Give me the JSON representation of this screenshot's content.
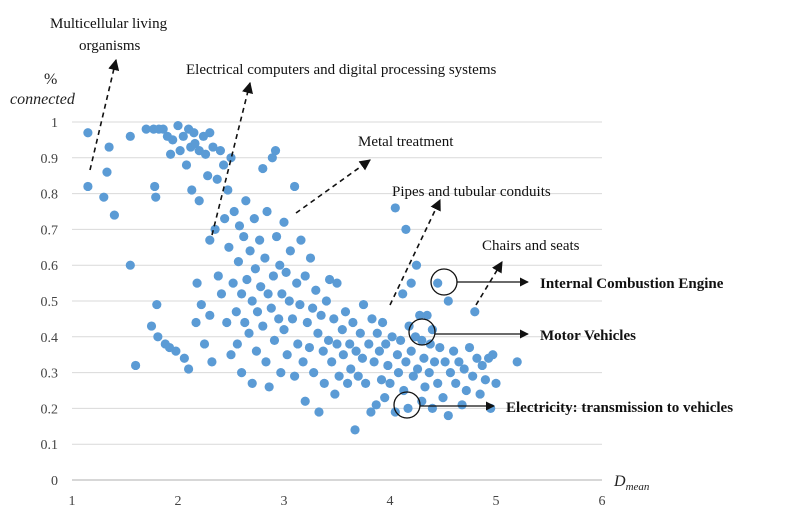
{
  "chart_data": {
    "type": "scatter",
    "title": "",
    "xlabel": "D",
    "xlabel_sub": "mean",
    "ylabel_line1": "%",
    "ylabel_line2": "connected",
    "xlim": [
      1,
      6
    ],
    "ylim": [
      0,
      1
    ],
    "x_ticks": [
      "1",
      "2",
      "3",
      "4",
      "5",
      "6"
    ],
    "y_ticks": [
      "0",
      "0.1",
      "0.2",
      "0.3",
      "0.4",
      "0.5",
      "0.6",
      "0.7",
      "0.8",
      "0.9",
      "1"
    ],
    "grid": "horizontal",
    "point_color": "#5b9bd5",
    "points": [
      [
        1.15,
        0.97
      ],
      [
        1.15,
        0.82
      ],
      [
        1.3,
        0.79
      ],
      [
        1.35,
        0.93
      ],
      [
        1.33,
        0.86
      ],
      [
        1.4,
        0.74
      ],
      [
        1.55,
        0.6
      ],
      [
        1.6,
        0.32
      ],
      [
        1.55,
        0.96
      ],
      [
        1.7,
        0.98
      ],
      [
        1.75,
        0.43
      ],
      [
        1.77,
        0.98
      ],
      [
        1.78,
        0.82
      ],
      [
        1.79,
        0.79
      ],
      [
        1.8,
        0.49
      ],
      [
        1.81,
        0.4
      ],
      [
        1.82,
        0.98
      ],
      [
        1.86,
        0.98
      ],
      [
        1.88,
        0.38
      ],
      [
        1.9,
        0.96
      ],
      [
        1.92,
        0.37
      ],
      [
        1.93,
        0.91
      ],
      [
        1.95,
        0.95
      ],
      [
        1.98,
        0.36
      ],
      [
        2.0,
        0.99
      ],
      [
        2.02,
        0.92
      ],
      [
        2.05,
        0.96
      ],
      [
        2.06,
        0.34
      ],
      [
        2.08,
        0.88
      ],
      [
        2.1,
        0.31
      ],
      [
        2.1,
        0.98
      ],
      [
        2.12,
        0.93
      ],
      [
        2.13,
        0.81
      ],
      [
        2.15,
        0.97
      ],
      [
        2.16,
        0.94
      ],
      [
        2.17,
        0.44
      ],
      [
        2.18,
        0.55
      ],
      [
        2.2,
        0.78
      ],
      [
        2.2,
        0.92
      ],
      [
        2.22,
        0.49
      ],
      [
        2.24,
        0.96
      ],
      [
        2.25,
        0.38
      ],
      [
        2.26,
        0.91
      ],
      [
        2.28,
        0.85
      ],
      [
        2.3,
        0.97
      ],
      [
        2.3,
        0.67
      ],
      [
        2.3,
        0.46
      ],
      [
        2.32,
        0.33
      ],
      [
        2.33,
        0.93
      ],
      [
        2.35,
        0.7
      ],
      [
        2.37,
        0.84
      ],
      [
        2.38,
        0.57
      ],
      [
        2.4,
        0.92
      ],
      [
        2.41,
        0.52
      ],
      [
        2.43,
        0.88
      ],
      [
        2.44,
        0.73
      ],
      [
        2.46,
        0.44
      ],
      [
        2.47,
        0.81
      ],
      [
        2.48,
        0.65
      ],
      [
        2.5,
        0.9
      ],
      [
        2.5,
        0.35
      ],
      [
        2.52,
        0.55
      ],
      [
        2.53,
        0.75
      ],
      [
        2.55,
        0.47
      ],
      [
        2.56,
        0.38
      ],
      [
        2.57,
        0.61
      ],
      [
        2.58,
        0.71
      ],
      [
        2.6,
        0.52
      ],
      [
        2.6,
        0.3
      ],
      [
        2.62,
        0.68
      ],
      [
        2.63,
        0.44
      ],
      [
        2.64,
        0.78
      ],
      [
        2.65,
        0.56
      ],
      [
        2.67,
        0.41
      ],
      [
        2.68,
        0.64
      ],
      [
        2.7,
        0.5
      ],
      [
        2.7,
        0.27
      ],
      [
        2.72,
        0.73
      ],
      [
        2.73,
        0.59
      ],
      [
        2.74,
        0.36
      ],
      [
        2.75,
        0.47
      ],
      [
        2.77,
        0.67
      ],
      [
        2.78,
        0.54
      ],
      [
        2.8,
        0.43
      ],
      [
        2.8,
        0.87
      ],
      [
        2.82,
        0.62
      ],
      [
        2.83,
        0.33
      ],
      [
        2.84,
        0.75
      ],
      [
        2.85,
        0.52
      ],
      [
        2.86,
        0.26
      ],
      [
        2.88,
        0.48
      ],
      [
        2.89,
        0.9
      ],
      [
        2.9,
        0.57
      ],
      [
        2.91,
        0.39
      ],
      [
        2.92,
        0.92
      ],
      [
        2.93,
        0.68
      ],
      [
        2.95,
        0.45
      ],
      [
        2.96,
        0.6
      ],
      [
        2.97,
        0.3
      ],
      [
        2.98,
        0.52
      ],
      [
        3.0,
        0.72
      ],
      [
        3.0,
        0.42
      ],
      [
        3.02,
        0.58
      ],
      [
        3.03,
        0.35
      ],
      [
        3.05,
        0.5
      ],
      [
        3.06,
        0.64
      ],
      [
        3.08,
        0.45
      ],
      [
        3.1,
        0.82
      ],
      [
        3.1,
        0.29
      ],
      [
        3.12,
        0.55
      ],
      [
        3.13,
        0.38
      ],
      [
        3.15,
        0.49
      ],
      [
        3.16,
        0.67
      ],
      [
        3.18,
        0.33
      ],
      [
        3.2,
        0.57
      ],
      [
        3.2,
        0.22
      ],
      [
        3.22,
        0.44
      ],
      [
        3.24,
        0.37
      ],
      [
        3.25,
        0.62
      ],
      [
        3.27,
        0.48
      ],
      [
        3.28,
        0.3
      ],
      [
        3.3,
        0.53
      ],
      [
        3.32,
        0.41
      ],
      [
        3.33,
        0.19
      ],
      [
        3.35,
        0.46
      ],
      [
        3.37,
        0.36
      ],
      [
        3.38,
        0.27
      ],
      [
        3.4,
        0.5
      ],
      [
        3.42,
        0.39
      ],
      [
        3.43,
        0.56
      ],
      [
        3.45,
        0.33
      ],
      [
        3.47,
        0.45
      ],
      [
        3.48,
        0.24
      ],
      [
        3.5,
        0.38
      ],
      [
        3.5,
        0.55
      ],
      [
        3.52,
        0.29
      ],
      [
        3.55,
        0.42
      ],
      [
        3.56,
        0.35
      ],
      [
        3.58,
        0.47
      ],
      [
        3.6,
        0.27
      ],
      [
        3.62,
        0.38
      ],
      [
        3.63,
        0.31
      ],
      [
        3.65,
        0.44
      ],
      [
        3.67,
        0.14
      ],
      [
        3.68,
        0.36
      ],
      [
        3.7,
        0.29
      ],
      [
        3.72,
        0.41
      ],
      [
        3.74,
        0.34
      ],
      [
        3.75,
        0.49
      ],
      [
        3.77,
        0.27
      ],
      [
        3.8,
        0.38
      ],
      [
        3.82,
        0.19
      ],
      [
        3.83,
        0.45
      ],
      [
        3.85,
        0.33
      ],
      [
        3.87,
        0.21
      ],
      [
        3.88,
        0.41
      ],
      [
        3.9,
        0.36
      ],
      [
        3.92,
        0.28
      ],
      [
        3.93,
        0.44
      ],
      [
        3.95,
        0.23
      ],
      [
        3.96,
        0.38
      ],
      [
        3.98,
        0.32
      ],
      [
        4.0,
        0.27
      ],
      [
        4.02,
        0.4
      ],
      [
        4.05,
        0.76
      ],
      [
        4.05,
        0.19
      ],
      [
        4.07,
        0.35
      ],
      [
        4.08,
        0.3
      ],
      [
        4.1,
        0.39
      ],
      [
        4.12,
        0.52
      ],
      [
        4.13,
        0.25
      ],
      [
        4.15,
        0.7
      ],
      [
        4.15,
        0.33
      ],
      [
        4.17,
        0.2
      ],
      [
        4.18,
        0.43
      ],
      [
        4.2,
        0.36
      ],
      [
        4.2,
        0.55
      ],
      [
        4.22,
        0.29
      ],
      [
        4.24,
        0.4
      ],
      [
        4.25,
        0.6
      ],
      [
        4.26,
        0.31
      ],
      [
        4.28,
        0.46
      ],
      [
        4.3,
        0.22
      ],
      [
        4.3,
        0.39
      ],
      [
        4.32,
        0.34
      ],
      [
        4.33,
        0.26
      ],
      [
        4.35,
        0.46
      ],
      [
        4.37,
        0.3
      ],
      [
        4.38,
        0.38
      ],
      [
        4.4,
        0.2
      ],
      [
        4.4,
        0.42
      ],
      [
        4.42,
        0.33
      ],
      [
        4.45,
        0.55
      ],
      [
        4.45,
        0.27
      ],
      [
        4.47,
        0.37
      ],
      [
        4.5,
        0.23
      ],
      [
        4.52,
        0.33
      ],
      [
        4.55,
        0.5
      ],
      [
        4.55,
        0.18
      ],
      [
        4.57,
        0.3
      ],
      [
        4.6,
        0.36
      ],
      [
        4.62,
        0.27
      ],
      [
        4.65,
        0.33
      ],
      [
        4.68,
        0.21
      ],
      [
        4.7,
        0.31
      ],
      [
        4.72,
        0.25
      ],
      [
        4.75,
        0.37
      ],
      [
        4.78,
        0.29
      ],
      [
        4.8,
        0.47
      ],
      [
        4.82,
        0.34
      ],
      [
        4.85,
        0.24
      ],
      [
        4.87,
        0.32
      ],
      [
        4.9,
        0.28
      ],
      [
        4.93,
        0.34
      ],
      [
        4.95,
        0.2
      ],
      [
        4.97,
        0.35
      ],
      [
        5.0,
        0.27
      ],
      [
        5.2,
        0.33
      ]
    ],
    "annotations": [
      {
        "line1": "Multicellular living",
        "line2": "organisms"
      },
      {
        "line1": "Electrical computers and digital processing systems"
      },
      {
        "line1": "Metal treatment"
      },
      {
        "line1": "Pipes and tubular conduits"
      },
      {
        "line1": "Chairs and seats"
      }
    ],
    "callouts": [
      {
        "label": "Internal Combustion Engine"
      },
      {
        "label": "Motor Vehicles"
      },
      {
        "label": "Electricity: transmission to vehicles"
      }
    ]
  }
}
